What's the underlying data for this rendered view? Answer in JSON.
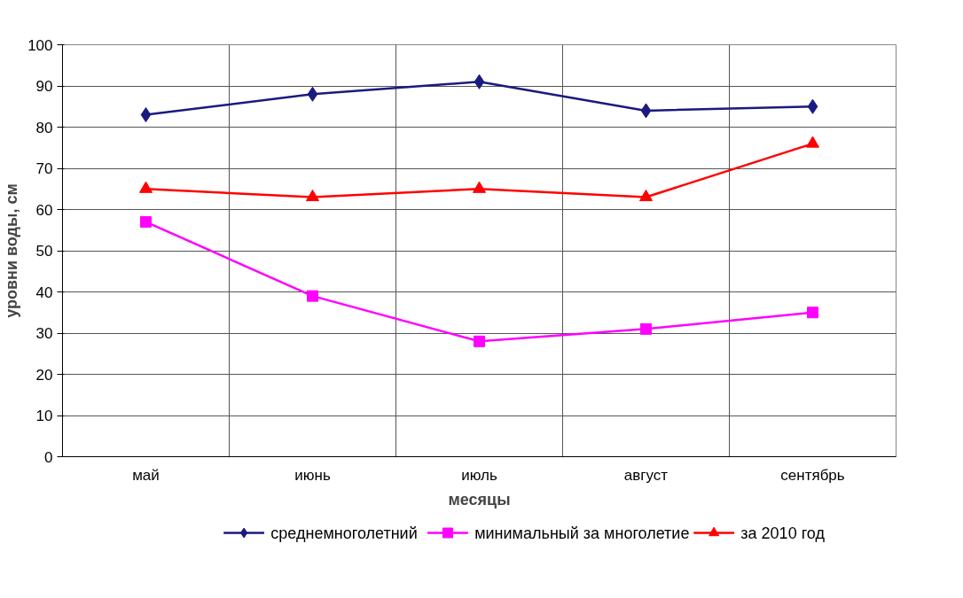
{
  "chart_data": {
    "type": "line",
    "xlabel": "месяцы",
    "ylabel": "уровни воды, см",
    "categories": [
      "май",
      "июнь",
      "июль",
      "август",
      "сентябрь"
    ],
    "series": [
      {
        "name": "среднемноголетний",
        "color": "#1a1a80",
        "marker": "diamond",
        "values": [
          83,
          88,
          91,
          84,
          85
        ]
      },
      {
        "name": "минимальный за многолетие",
        "color": "#ff00ff",
        "marker": "square",
        "values": [
          57,
          39,
          28,
          31,
          35
        ]
      },
      {
        "name": "за 2010 год",
        "color": "#ff0000",
        "marker": "triangle",
        "values": [
          65,
          63,
          65,
          63,
          76
        ]
      }
    ],
    "ylim": [
      0,
      100
    ],
    "yticks": [
      0,
      10,
      20,
      30,
      40,
      50,
      60,
      70,
      80,
      90,
      100
    ],
    "grid": true,
    "legend": "bottom",
    "line_style": "solid"
  }
}
